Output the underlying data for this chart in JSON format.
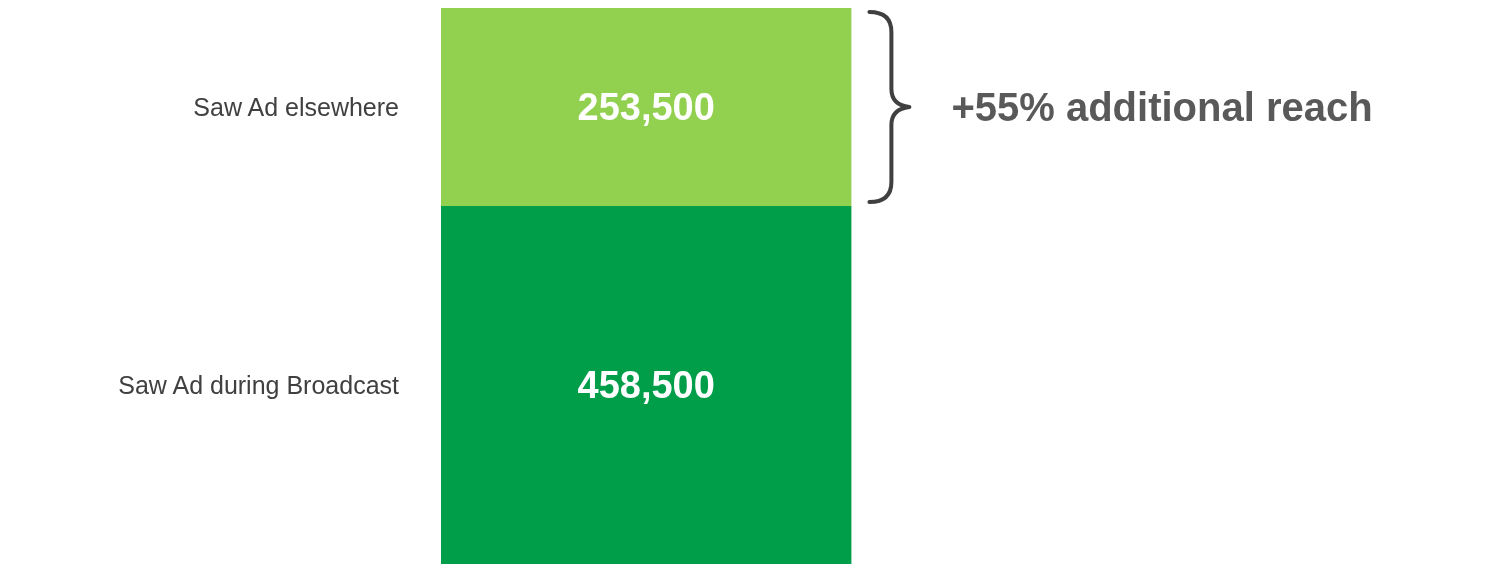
{
  "chart_data": {
    "type": "bar",
    "stacked": true,
    "categories": [
      null
    ],
    "series": [
      {
        "name": "Saw Ad during Broadcast",
        "color": "#009e49",
        "values": [
          458500
        ],
        "value_labels": [
          "458,500"
        ]
      },
      {
        "name": "Saw Ad elsewhere",
        "color": "#92d050",
        "values": [
          253500
        ],
        "value_labels": [
          "253,500"
        ]
      }
    ],
    "annotations": [
      "+55% additional reach"
    ]
  }
}
